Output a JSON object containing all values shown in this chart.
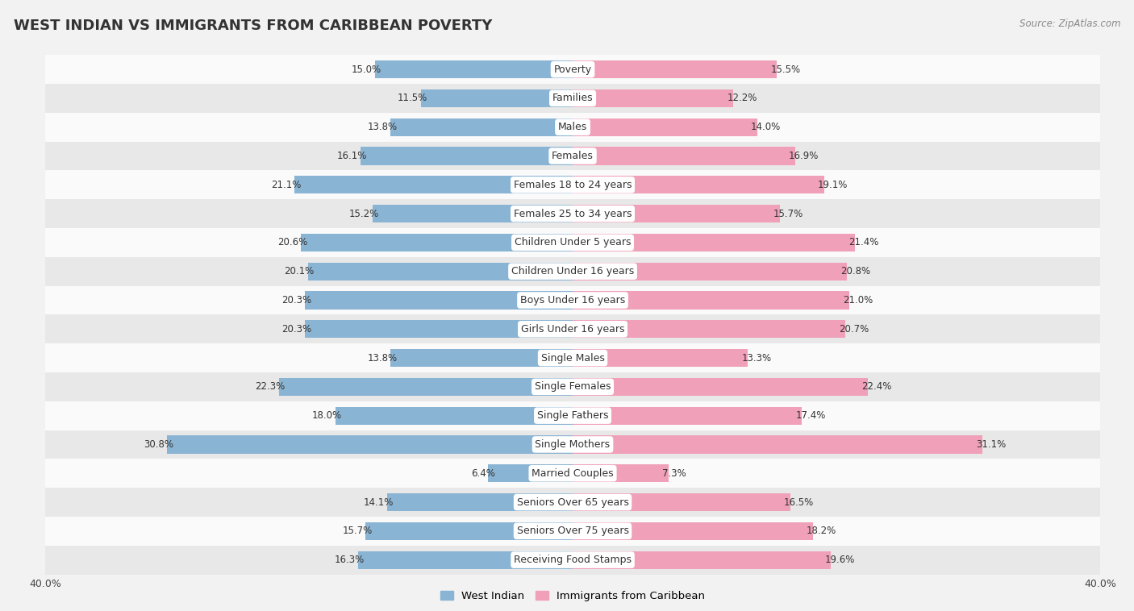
{
  "title": "WEST INDIAN VS IMMIGRANTS FROM CARIBBEAN POVERTY",
  "source": "Source: ZipAtlas.com",
  "categories": [
    "Poverty",
    "Families",
    "Males",
    "Females",
    "Females 18 to 24 years",
    "Females 25 to 34 years",
    "Children Under 5 years",
    "Children Under 16 years",
    "Boys Under 16 years",
    "Girls Under 16 years",
    "Single Males",
    "Single Females",
    "Single Fathers",
    "Single Mothers",
    "Married Couples",
    "Seniors Over 65 years",
    "Seniors Over 75 years",
    "Receiving Food Stamps"
  ],
  "west_indian": [
    15.0,
    11.5,
    13.8,
    16.1,
    21.1,
    15.2,
    20.6,
    20.1,
    20.3,
    20.3,
    13.8,
    22.3,
    18.0,
    30.8,
    6.4,
    14.1,
    15.7,
    16.3
  ],
  "immigrants": [
    15.5,
    12.2,
    14.0,
    16.9,
    19.1,
    15.7,
    21.4,
    20.8,
    21.0,
    20.7,
    13.3,
    22.4,
    17.4,
    31.1,
    7.3,
    16.5,
    18.2,
    19.6
  ],
  "west_indian_color": "#8ab4d4",
  "immigrants_color": "#f0a0b8",
  "background_color": "#f2f2f2",
  "row_bg_light": "#fafafa",
  "row_bg_dark": "#e8e8e8",
  "axis_max": 40.0,
  "bar_height": 0.62,
  "label_fontsize": 9.0,
  "value_fontsize": 8.5,
  "title_fontsize": 13,
  "source_fontsize": 8.5
}
